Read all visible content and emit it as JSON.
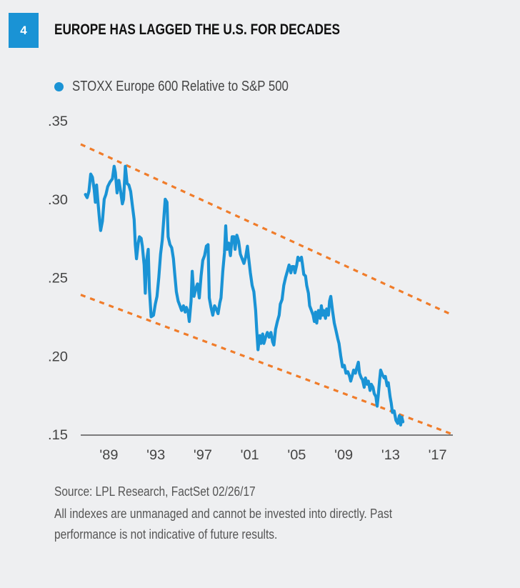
{
  "figure": {
    "number": "4",
    "title": "EUROPE HAS LAGGED THE U.S. FOR DECADES",
    "source": "Source: LPL Research, FactSet   02/26/17",
    "disclaimer_line1": "All indexes are unmanaged and cannot be invested into directly. Past",
    "disclaimer_line2": "performance is not indicative of future results.",
    "colors": {
      "accent": "#1a93d5",
      "series": "#1a93d5",
      "trend": "#f07c2a",
      "axis": "#555555"
    }
  },
  "chart_data": {
    "type": "line",
    "title": "EUROPE HAS LAGGED THE U.S. FOR DECADES",
    "xlabel": "",
    "ylabel": "",
    "xlim": [
      1986.6,
      2018.3
    ],
    "ylim": [
      0.15,
      0.35
    ],
    "y_ticks": [
      0.35,
      0.3,
      0.25,
      0.2,
      0.15
    ],
    "y_tick_labels": [
      ".35",
      ".30",
      ".25",
      ".20",
      ".15"
    ],
    "x_ticks": [
      1989,
      1993,
      1997,
      2001,
      2005,
      2009,
      2013,
      2017
    ],
    "x_tick_labels": [
      "'89",
      "'93",
      "'97",
      "'01",
      "'05",
      "'09",
      "'13",
      "'17"
    ],
    "grid": false,
    "legend": {
      "position": "top-left",
      "entries": [
        "STOXX Europe 600 Relative to S&P 500"
      ]
    },
    "series": [
      {
        "name": "STOXX Europe 600 Relative to S&P 500",
        "points": [
          [
            1987.0,
            0.303
          ],
          [
            1987.15,
            0.301
          ],
          [
            1987.3,
            0.305
          ],
          [
            1987.45,
            0.316
          ],
          [
            1987.6,
            0.314
          ],
          [
            1987.75,
            0.306
          ],
          [
            1987.85,
            0.298
          ],
          [
            1987.95,
            0.309
          ],
          [
            1988.05,
            0.3
          ],
          [
            1988.2,
            0.287
          ],
          [
            1988.3,
            0.28
          ],
          [
            1988.45,
            0.286
          ],
          [
            1988.6,
            0.3
          ],
          [
            1988.75,
            0.303
          ],
          [
            1988.9,
            0.308
          ],
          [
            1989.1,
            0.311
          ],
          [
            1989.3,
            0.313
          ],
          [
            1989.45,
            0.321
          ],
          [
            1989.55,
            0.317
          ],
          [
            1989.7,
            0.304
          ],
          [
            1989.85,
            0.312
          ],
          [
            1990.0,
            0.305
          ],
          [
            1990.15,
            0.297
          ],
          [
            1990.25,
            0.3
          ],
          [
            1990.4,
            0.321
          ],
          [
            1990.55,
            0.31
          ],
          [
            1990.7,
            0.309
          ],
          [
            1990.85,
            0.305
          ],
          [
            1991.0,
            0.296
          ],
          [
            1991.15,
            0.287
          ],
          [
            1991.25,
            0.271
          ],
          [
            1991.35,
            0.262
          ],
          [
            1991.5,
            0.272
          ],
          [
            1991.6,
            0.276
          ],
          [
            1991.75,
            0.275
          ],
          [
            1991.85,
            0.27
          ],
          [
            1992.0,
            0.258
          ],
          [
            1992.1,
            0.24
          ],
          [
            1992.2,
            0.26
          ],
          [
            1992.35,
            0.268
          ],
          [
            1992.45,
            0.243
          ],
          [
            1992.6,
            0.225
          ],
          [
            1992.8,
            0.226
          ],
          [
            1992.95,
            0.233
          ],
          [
            1993.1,
            0.238
          ],
          [
            1993.25,
            0.25
          ],
          [
            1993.4,
            0.265
          ],
          [
            1993.55,
            0.274
          ],
          [
            1993.65,
            0.285
          ],
          [
            1993.8,
            0.3
          ],
          [
            1993.95,
            0.298
          ],
          [
            1994.05,
            0.276
          ],
          [
            1994.2,
            0.271
          ],
          [
            1994.35,
            0.269
          ],
          [
            1994.5,
            0.262
          ],
          [
            1994.6,
            0.253
          ],
          [
            1994.75,
            0.241
          ],
          [
            1994.9,
            0.235
          ],
          [
            1995.05,
            0.232
          ],
          [
            1995.2,
            0.229
          ],
          [
            1995.35,
            0.232
          ],
          [
            1995.5,
            0.228
          ],
          [
            1995.6,
            0.231
          ],
          [
            1995.75,
            0.228
          ],
          [
            1995.85,
            0.222
          ],
          [
            1996.0,
            0.235
          ],
          [
            1996.1,
            0.254
          ],
          [
            1996.25,
            0.238
          ],
          [
            1996.4,
            0.243
          ],
          [
            1996.55,
            0.246
          ],
          [
            1996.7,
            0.237
          ],
          [
            1996.85,
            0.251
          ],
          [
            1997.0,
            0.261
          ],
          [
            1997.15,
            0.264
          ],
          [
            1997.3,
            0.27
          ],
          [
            1997.45,
            0.271
          ],
          [
            1997.55,
            0.237
          ],
          [
            1997.7,
            0.231
          ],
          [
            1997.85,
            0.226
          ],
          [
            1998.0,
            0.232
          ],
          [
            1998.15,
            0.23
          ],
          [
            1998.3,
            0.227
          ],
          [
            1998.45,
            0.234
          ],
          [
            1998.55,
            0.237
          ],
          [
            1998.7,
            0.254
          ],
          [
            1998.85,
            0.266
          ],
          [
            1998.95,
            0.283
          ],
          [
            1999.05,
            0.268
          ],
          [
            1999.2,
            0.272
          ],
          [
            1999.35,
            0.264
          ],
          [
            1999.5,
            0.276
          ],
          [
            1999.65,
            0.276
          ],
          [
            1999.75,
            0.268
          ],
          [
            1999.9,
            0.277
          ],
          [
            2000.05,
            0.273
          ],
          [
            2000.2,
            0.265
          ],
          [
            2000.35,
            0.262
          ],
          [
            2000.5,
            0.259
          ],
          [
            2000.65,
            0.263
          ],
          [
            2000.8,
            0.27
          ],
          [
            2000.9,
            0.263
          ],
          [
            2001.05,
            0.253
          ],
          [
            2001.2,
            0.245
          ],
          [
            2001.35,
            0.241
          ],
          [
            2001.5,
            0.229
          ],
          [
            2001.6,
            0.216
          ],
          [
            2001.7,
            0.204
          ],
          [
            2001.85,
            0.213
          ],
          [
            2001.95,
            0.208
          ],
          [
            2002.1,
            0.214
          ],
          [
            2002.2,
            0.208
          ],
          [
            2002.35,
            0.212
          ],
          [
            2002.5,
            0.215
          ],
          [
            2002.65,
            0.212
          ],
          [
            2002.8,
            0.215
          ],
          [
            2002.95,
            0.209
          ],
          [
            2003.05,
            0.207
          ],
          [
            2003.2,
            0.217
          ],
          [
            2003.35,
            0.222
          ],
          [
            2003.5,
            0.226
          ],
          [
            2003.6,
            0.233
          ],
          [
            2003.75,
            0.236
          ],
          [
            2003.9,
            0.245
          ],
          [
            2004.05,
            0.25
          ],
          [
            2004.2,
            0.254
          ],
          [
            2004.35,
            0.258
          ],
          [
            2004.5,
            0.253
          ],
          [
            2004.6,
            0.257
          ],
          [
            2004.75,
            0.257
          ],
          [
            2004.85,
            0.253
          ],
          [
            2005.0,
            0.258
          ],
          [
            2005.1,
            0.263
          ],
          [
            2005.25,
            0.261
          ],
          [
            2005.4,
            0.263
          ],
          [
            2005.5,
            0.258
          ],
          [
            2005.6,
            0.252
          ],
          [
            2005.75,
            0.251
          ],
          [
            2005.85,
            0.245
          ],
          [
            2006.0,
            0.24
          ],
          [
            2006.1,
            0.232
          ],
          [
            2006.25,
            0.229
          ],
          [
            2006.4,
            0.226
          ],
          [
            2006.5,
            0.222
          ],
          [
            2006.6,
            0.228
          ],
          [
            2006.7,
            0.221
          ],
          [
            2006.85,
            0.229
          ],
          [
            2007.0,
            0.224
          ],
          [
            2007.1,
            0.232
          ],
          [
            2007.2,
            0.226
          ],
          [
            2007.3,
            0.229
          ],
          [
            2007.45,
            0.224
          ],
          [
            2007.55,
            0.23
          ],
          [
            2007.7,
            0.226
          ],
          [
            2007.8,
            0.235
          ],
          [
            2007.9,
            0.238
          ],
          [
            2008.05,
            0.229
          ],
          [
            2008.2,
            0.221
          ],
          [
            2008.35,
            0.216
          ],
          [
            2008.5,
            0.211
          ],
          [
            2008.6,
            0.208
          ],
          [
            2008.75,
            0.2
          ],
          [
            2008.9,
            0.193
          ],
          [
            2009.05,
            0.194
          ],
          [
            2009.2,
            0.189
          ],
          [
            2009.35,
            0.19
          ],
          [
            2009.5,
            0.187
          ],
          [
            2009.6,
            0.184
          ],
          [
            2009.75,
            0.188
          ],
          [
            2009.85,
            0.191
          ],
          [
            2010.0,
            0.189
          ],
          [
            2010.1,
            0.192
          ],
          [
            2010.25,
            0.196
          ],
          [
            2010.35,
            0.189
          ],
          [
            2010.5,
            0.186
          ],
          [
            2010.6,
            0.185
          ],
          [
            2010.75,
            0.18
          ],
          [
            2010.85,
            0.186
          ],
          [
            2011.0,
            0.182
          ],
          [
            2011.1,
            0.184
          ],
          [
            2011.25,
            0.178
          ],
          [
            2011.35,
            0.182
          ],
          [
            2011.5,
            0.18
          ],
          [
            2011.6,
            0.176
          ],
          [
            2011.75,
            0.174
          ],
          [
            2011.85,
            0.168
          ],
          [
            2011.95,
            0.175
          ],
          [
            2012.05,
            0.184
          ],
          [
            2012.15,
            0.191
          ],
          [
            2012.3,
            0.188
          ],
          [
            2012.45,
            0.186
          ],
          [
            2012.55,
            0.187
          ],
          [
            2012.7,
            0.181
          ],
          [
            2012.8,
            0.183
          ],
          [
            2012.95,
            0.174
          ],
          [
            2013.05,
            0.17
          ],
          [
            2013.15,
            0.164
          ],
          [
            2013.3,
            0.165
          ],
          [
            2013.45,
            0.159
          ],
          [
            2013.6,
            0.157
          ],
          [
            2013.75,
            0.162
          ],
          [
            2013.85,
            0.156
          ],
          [
            2013.95,
            0.161
          ],
          [
            2014.05,
            0.158
          ]
        ]
      }
    ],
    "trend_lines": [
      {
        "name": "upper-channel",
        "start": [
          1986.6,
          0.335
        ],
        "end": [
          2018.3,
          0.226
        ]
      },
      {
        "name": "lower-channel",
        "start": [
          1986.6,
          0.239
        ],
        "end": [
          2018.3,
          0.15
        ]
      }
    ]
  }
}
